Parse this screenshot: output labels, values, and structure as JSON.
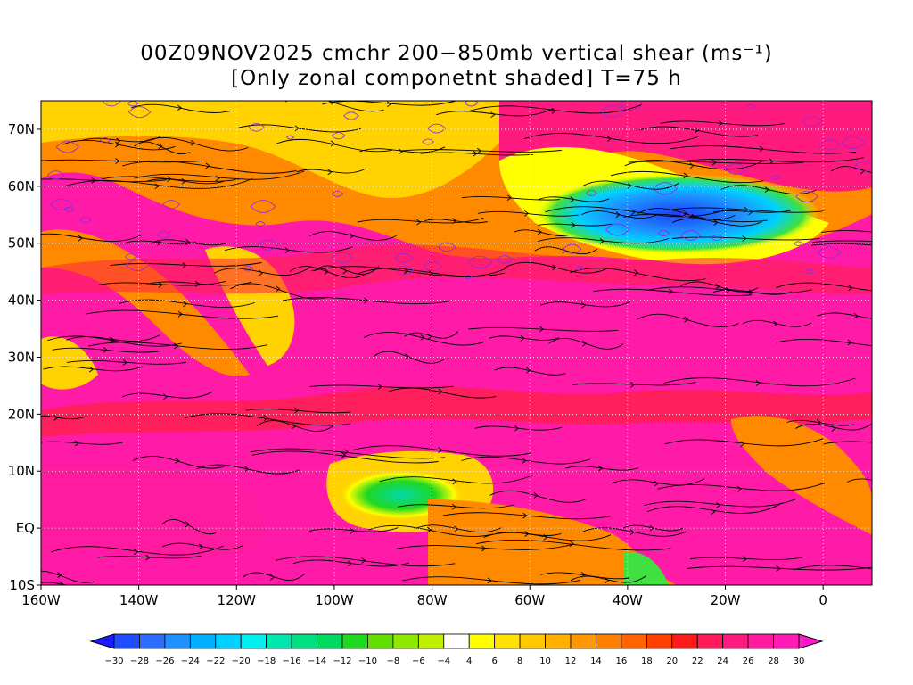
{
  "title": {
    "line1": "00Z09NOV2025 cmchr 200−850mb vertical shear (ms⁻¹)",
    "line2": "[Only zonal componetnt shaded] T=75 h"
  },
  "map": {
    "lon_range": [
      -160,
      10
    ],
    "lat_range": [
      -10,
      75
    ],
    "lat_ticks": [
      {
        "value": 70,
        "label": "70N"
      },
      {
        "value": 60,
        "label": "60N"
      },
      {
        "value": 50,
        "label": "50N"
      },
      {
        "value": 40,
        "label": "40N"
      },
      {
        "value": 30,
        "label": "30N"
      },
      {
        "value": 20,
        "label": "20N"
      },
      {
        "value": 10,
        "label": "10N"
      },
      {
        "value": 0,
        "label": "EQ"
      },
      {
        "value": -10,
        "label": "10S"
      }
    ],
    "lon_ticks": [
      {
        "value": -160,
        "label": "160W"
      },
      {
        "value": -140,
        "label": "140W"
      },
      {
        "value": -120,
        "label": "120W"
      },
      {
        "value": -100,
        "label": "100W"
      },
      {
        "value": -80,
        "label": "80W"
      },
      {
        "value": -60,
        "label": "60W"
      },
      {
        "value": -40,
        "label": "40W"
      },
      {
        "value": -20,
        "label": "20W"
      },
      {
        "value": 0,
        "label": "0"
      }
    ]
  },
  "colorbar": {
    "labels": [
      "−30",
      "−28",
      "−26",
      "−24",
      "−22",
      "−20",
      "−18",
      "−16",
      "−14",
      "−12",
      "−10",
      "−8",
      "−6",
      "−4",
      "4",
      "6",
      "8",
      "10",
      "12",
      "14",
      "16",
      "18",
      "20",
      "22",
      "24",
      "26",
      "28",
      "30"
    ],
    "colors": [
      "#1a1aff",
      "#1f4dff",
      "#2a6dff",
      "#1e90ff",
      "#00b0ff",
      "#00d0ff",
      "#00f0f0",
      "#00e8b0",
      "#00e080",
      "#00d860",
      "#20d820",
      "#60e000",
      "#90e800",
      "#c0f000",
      "#ffffff",
      "#ffff00",
      "#ffe000",
      "#ffc800",
      "#ffb000",
      "#ff9800",
      "#ff8000",
      "#ff6400",
      "#ff4000",
      "#ff1a1a",
      "#ff1a5a",
      "#ff1a80",
      "#ff1aa0",
      "#ff1ab4",
      "#ff1ac8"
    ]
  },
  "colors": {
    "deep_magenta": "#ff1aa8",
    "red": "#ff2244",
    "orange": "#ff8a00",
    "yellow": "#ffd200",
    "green": "#40e040",
    "cyan": "#00d0ff",
    "blue": "#1a40ff",
    "streamline": "#000000",
    "contour": "#8a2be2"
  }
}
